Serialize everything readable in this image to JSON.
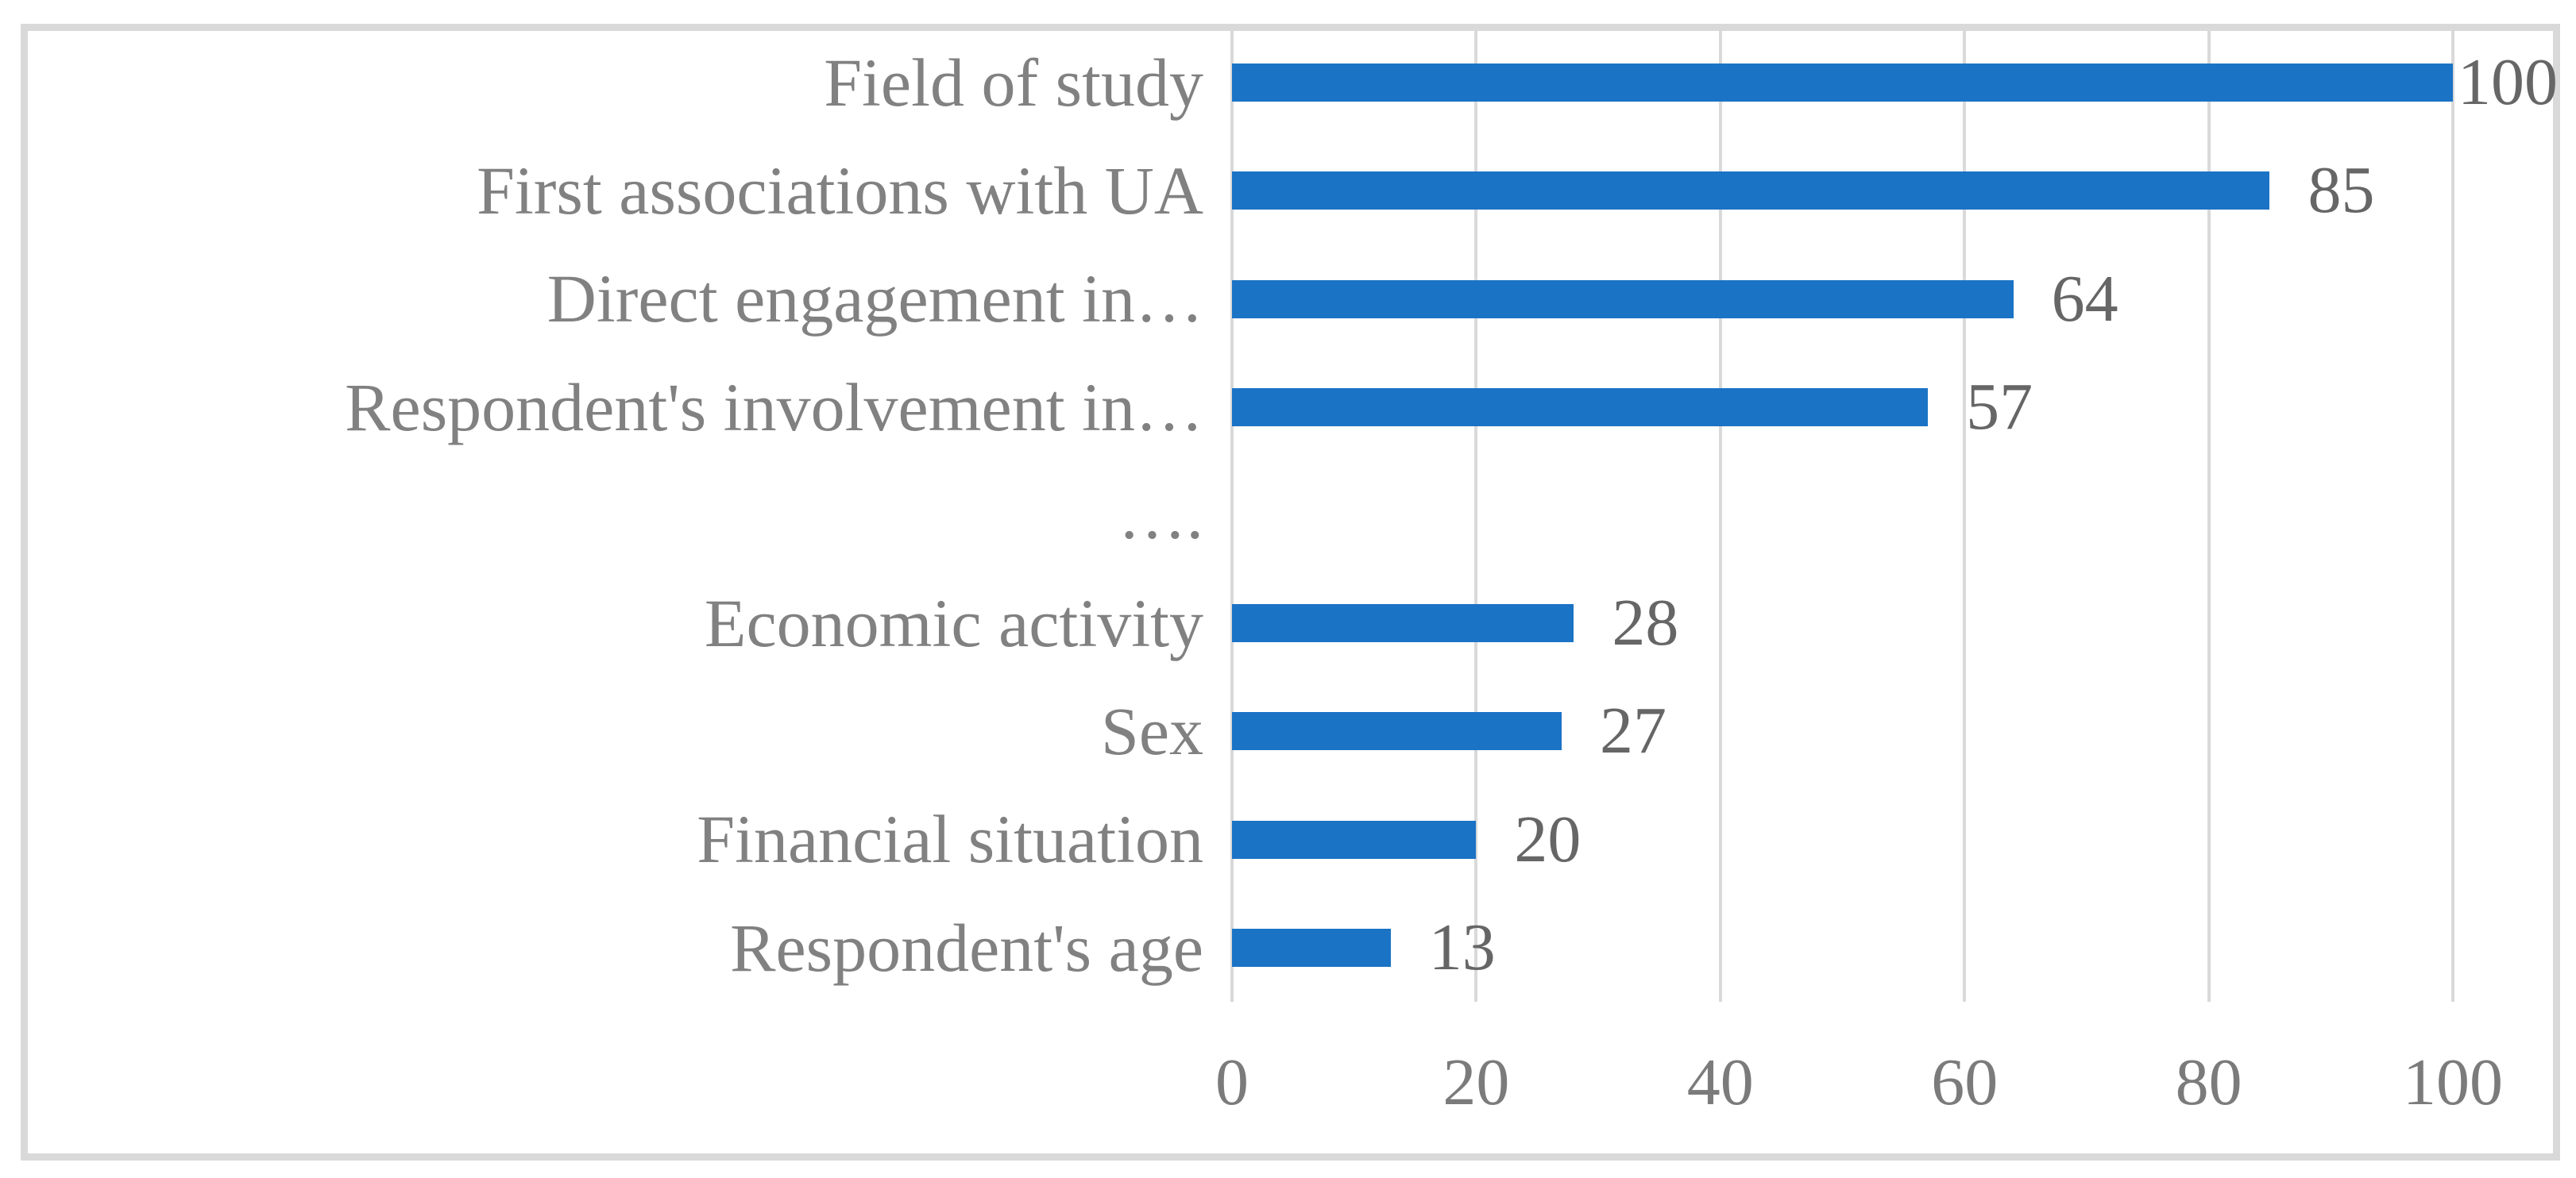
{
  "chart_data": {
    "type": "bar",
    "orientation": "horizontal",
    "title": "",
    "xlabel": "",
    "ylabel": "",
    "categories": [
      "Field of study",
      "First associations with UA",
      "Direct engagement in…",
      "Respondent's involvement in…",
      "….",
      "Economic activity",
      "Sex",
      "Financial situation",
      "Respondent's age"
    ],
    "values": [
      100,
      85,
      64,
      57,
      null,
      28,
      27,
      20,
      13
    ],
    "data_labels": [
      "100",
      "85",
      "64",
      "57",
      "",
      "28",
      "27",
      "20",
      "13"
    ],
    "x_ticks": [
      "0",
      "20",
      "40",
      "60",
      "80",
      "100"
    ],
    "x_tick_values": [
      0,
      20,
      40,
      60,
      80,
      100
    ],
    "xlim": [
      0,
      100
    ],
    "grid": "vertical-major",
    "legend": false,
    "colors": {
      "bar": "#1b73c5",
      "gridline": "#d9d9d9",
      "chart_border": "#d9d9d9",
      "category_label": "#818181",
      "value_label": "#666666",
      "tick_label": "#7b7b7b",
      "background": "#ffffff"
    }
  }
}
